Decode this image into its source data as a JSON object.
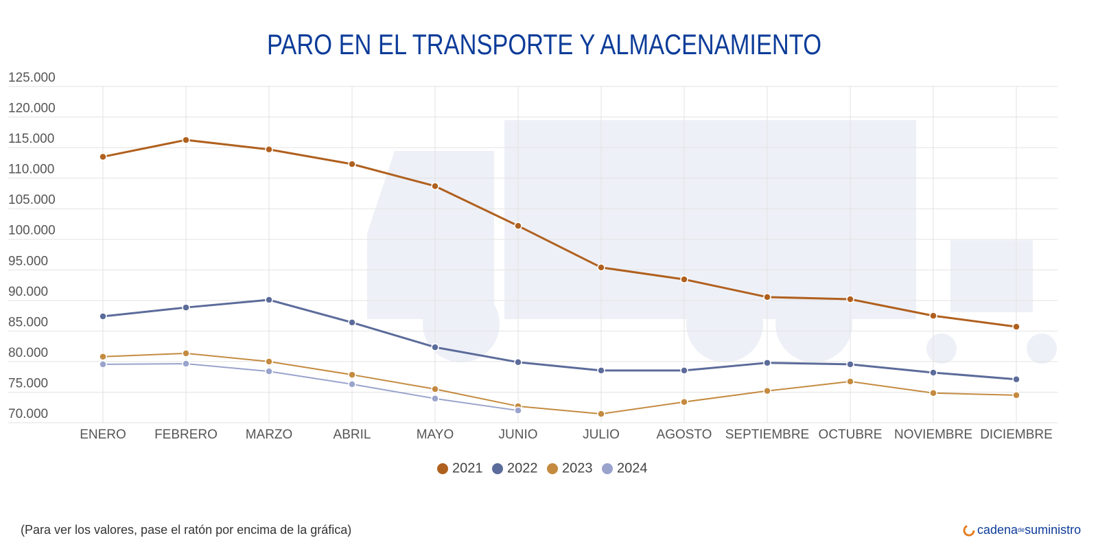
{
  "chart_data": {
    "type": "line",
    "title": "PARO EN EL TRANSPORTE Y ALMACENAMIENTO",
    "categories": [
      "ENERO",
      "FEBRERO",
      "MARZO",
      "ABRIL",
      "MAYO",
      "JUNIO",
      "JULIO",
      "AGOSTO",
      "SEPTIEMBRE",
      "OCTUBRE",
      "NOVIEMBRE",
      "DICIEMBRE"
    ],
    "series": [
      {
        "name": "2021",
        "color": "#b0601e",
        "values": [
          113500,
          116250,
          114700,
          112300,
          108700,
          102200,
          95400,
          93450,
          90550,
          90200,
          87500,
          85700
        ]
      },
      {
        "name": "2022",
        "color": "#5b6b9a",
        "values": [
          87400,
          88850,
          90100,
          86400,
          82350,
          79900,
          78550,
          78550,
          79800,
          79550,
          78200,
          77100
        ]
      },
      {
        "name": "2023",
        "color": "#c48a40",
        "values": [
          80800,
          81350,
          80000,
          77850,
          75500,
          72700,
          71450,
          73400,
          75200,
          76750,
          74850,
          74500
        ]
      },
      {
        "name": "2024",
        "color": "#99a3cc",
        "values": [
          79550,
          79650,
          78400,
          76300,
          73950,
          72000,
          null,
          null,
          null,
          null,
          null,
          null
        ]
      }
    ],
    "ylim": [
      70000,
      125000
    ],
    "yticks": [
      {
        "value": 70000,
        "label": "70.000"
      },
      {
        "value": 75000,
        "label": "75.000"
      },
      {
        "value": 80000,
        "label": "80.000"
      },
      {
        "value": 85000,
        "label": "85.000"
      },
      {
        "value": 90000,
        "label": "90.000"
      },
      {
        "value": 95000,
        "label": "95.000"
      },
      {
        "value": 100000,
        "label": "100.000"
      },
      {
        "value": 105000,
        "label": "105.000"
      },
      {
        "value": 110000,
        "label": "110.000"
      },
      {
        "value": 115000,
        "label": "115.000"
      },
      {
        "value": 120000,
        "label": "120.000"
      },
      {
        "value": 125000,
        "label": "125.000"
      }
    ],
    "grid": true,
    "legend": "bottom",
    "note": "(Para ver los valores, pase el ratón por encima de la gráfica)",
    "brand": [
      "cadena",
      "de",
      "suministro"
    ]
  }
}
